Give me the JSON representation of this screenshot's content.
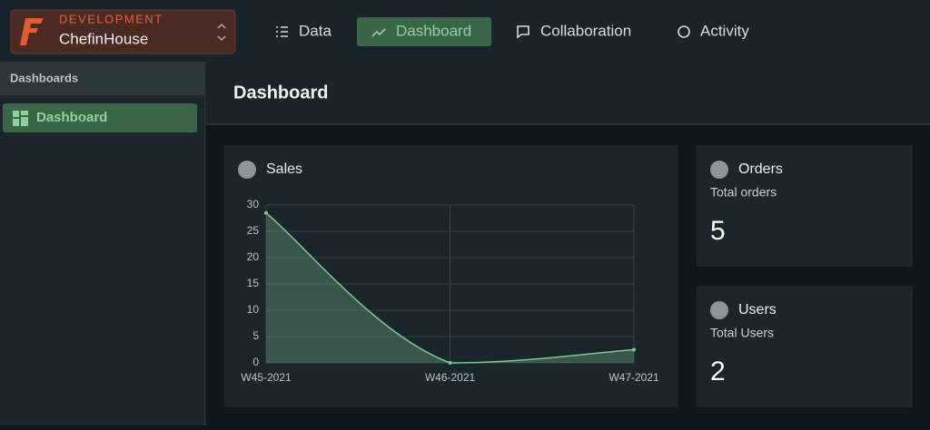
{
  "brand": {
    "env": "DEVELOPMENT",
    "name": "ChefinHouse"
  },
  "nav": [
    "Data",
    "Dashboard",
    "Collaboration",
    "Activity"
  ],
  "sidebar": {
    "title": "Dashboards",
    "items": [
      "Dashboard"
    ]
  },
  "page_title": "Dashboard",
  "cards": [
    {
      "title": "Orders",
      "subtitle": "Total orders",
      "value": 5
    },
    {
      "title": "Users",
      "subtitle": "Total Users",
      "value": 2
    }
  ],
  "chart_data": {
    "type": "line",
    "title": "Sales",
    "categories": [
      "W45-2021",
      "W46-2021",
      "W47-2021"
    ],
    "values": [
      28.5,
      0,
      2.5
    ],
    "color": "#7ec88f",
    "ylim": [
      0,
      30
    ],
    "yticks": [
      0,
      5,
      10,
      15,
      20,
      25,
      30
    ],
    "grid": true
  }
}
